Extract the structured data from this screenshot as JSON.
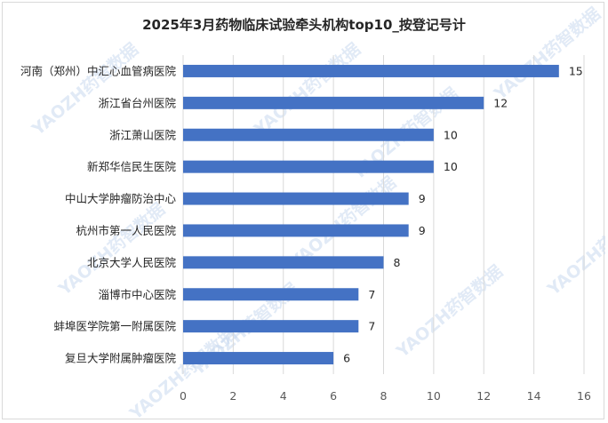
{
  "watermark": "YAOZH药智数据",
  "chart_data": {
    "type": "bar",
    "orientation": "horizontal",
    "title": "2025年3月药物临床试验牵头机构top10_按登记号计",
    "categories": [
      "河南（郑州）中汇心血管病医院",
      "浙江省台州医院",
      "浙江萧山医院",
      "新郑华信民生医院",
      "中山大学肿瘤防治中心",
      "杭州市第一人民医院",
      "北京大学人民医院",
      "淄博市中心医院",
      "蚌埠医学院第一附属医院",
      "复旦大学附属肿瘤医院"
    ],
    "values": [
      15,
      12,
      10,
      10,
      9,
      9,
      8,
      7,
      7,
      6
    ],
    "xlim": [
      0,
      16
    ],
    "xticks": [
      0,
      2,
      4,
      6,
      8,
      10,
      12,
      14,
      16
    ],
    "bar_color": "#4472c4",
    "grid": "vertical",
    "data_labels": true,
    "legend": "none"
  }
}
